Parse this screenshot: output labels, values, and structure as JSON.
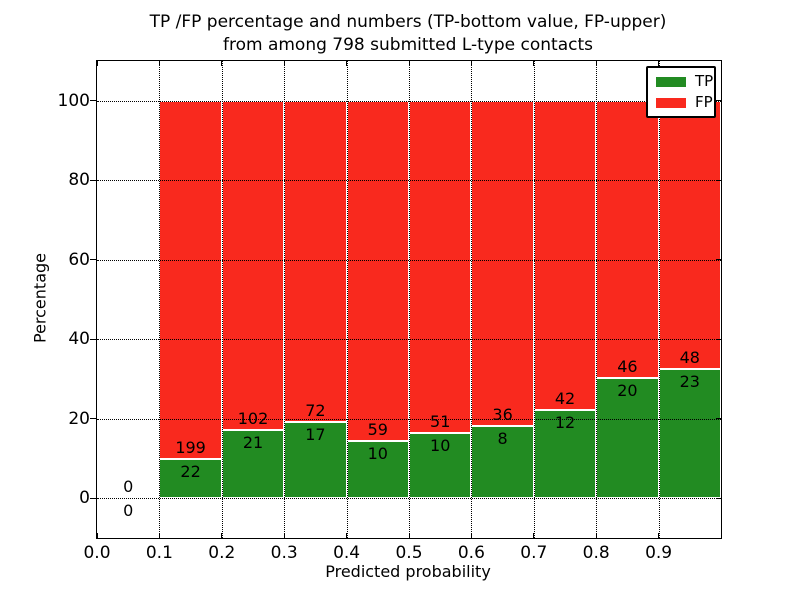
{
  "chart_data": {
    "type": "bar",
    "stacked": true,
    "title_line1": "TP /FP percentage and numbers (TP-bottom value, FP-upper)",
    "title_line2": "from among 798 submitted L-type contacts",
    "xlabel": "Predicted probability",
    "ylabel": "Percentage",
    "xlim": [
      0.0,
      1.0
    ],
    "ylim": [
      -10,
      110
    ],
    "grid": true,
    "x_ticks": [
      0.0,
      0.1,
      0.2,
      0.3,
      0.4,
      0.5,
      0.6,
      0.7,
      0.8,
      0.9
    ],
    "x_tick_labels": [
      "0.0",
      "0.1",
      "0.2",
      "0.3",
      "0.4",
      "0.5",
      "0.6",
      "0.7",
      "0.8",
      "0.9"
    ],
    "y_ticks": [
      0,
      20,
      40,
      60,
      80,
      100
    ],
    "y_tick_labels": [
      "0",
      "20",
      "40",
      "60",
      "80",
      "100"
    ],
    "legend_position": "upper right",
    "legend": [
      {
        "name": "TP",
        "color": "#228B22"
      },
      {
        "name": "FP",
        "color": "#F9291E"
      }
    ],
    "bar_value_note": "each bin shows TP count (bottom label) and FP count (upper label); green bar height = TP/(TP+FP)*100, red fills to 100%",
    "bins": [
      {
        "x0": 0.0,
        "x1": 0.1,
        "tp": 0,
        "fp": 0
      },
      {
        "x0": 0.1,
        "x1": 0.2,
        "tp": 22,
        "fp": 199
      },
      {
        "x0": 0.2,
        "x1": 0.3,
        "tp": 21,
        "fp": 102
      },
      {
        "x0": 0.3,
        "x1": 0.4,
        "tp": 17,
        "fp": 72
      },
      {
        "x0": 0.4,
        "x1": 0.5,
        "tp": 10,
        "fp": 59
      },
      {
        "x0": 0.5,
        "x1": 0.6,
        "tp": 10,
        "fp": 51
      },
      {
        "x0": 0.6,
        "x1": 0.7,
        "tp": 8,
        "fp": 36
      },
      {
        "x0": 0.7,
        "x1": 0.8,
        "tp": 12,
        "fp": 42
      },
      {
        "x0": 0.8,
        "x1": 0.9,
        "tp": 20,
        "fp": 46
      },
      {
        "x0": 0.9,
        "x1": 1.0,
        "tp": 23,
        "fp": 48
      }
    ],
    "colors": {
      "tp_bar": "#228B22",
      "fp_bar": "#F9291E",
      "bar_edge": "#FFFFFF",
      "grid": "#000000",
      "text": "#000000",
      "background": "#FFFFFF"
    }
  }
}
